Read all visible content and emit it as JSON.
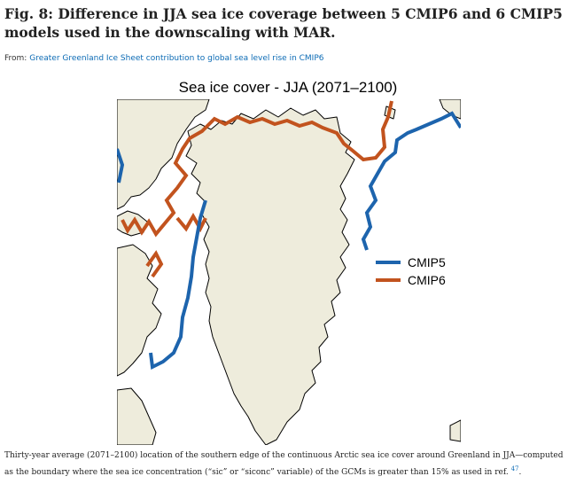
{
  "figure": {
    "title": "Fig. 8: Difference in JJA sea ice coverage between 5 CMIP6 and 6 CMIP5 models used in the downscaling with MAR.",
    "from_label": "From:",
    "from_link": "Greater Greenland Ice Sheet contribution to global sea level rise in CMIP6",
    "caption": "Thirty-year average (2071–2100) location of the southern edge of the continuous Arctic sea ice cover around Greenland in JJA—computed as the boundary where the sea ice concentration (“sic” or “siconc” variable) of the GCMs is greater than 15% as used in ref.",
    "caption_ref": "47"
  },
  "map": {
    "title": "Sea ice cover - JJA (2071–2100)",
    "colors": {
      "land": "#eeecdc",
      "sea": "#ffffff",
      "coast": "#000000",
      "cmip5": "#1d64ad",
      "cmip6": "#c2531e"
    },
    "legend": [
      {
        "label": "CMIP5",
        "color": "#1d64ad"
      },
      {
        "label": "CMIP6",
        "color": "#c2531e"
      }
    ]
  }
}
